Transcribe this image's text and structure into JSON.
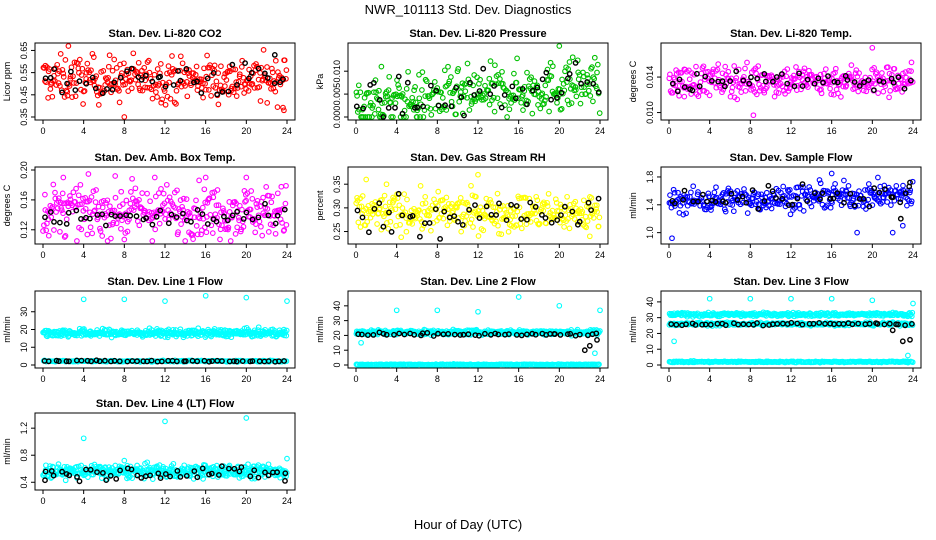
{
  "figure": {
    "title": "NWR_101113  Std. Dev. Diagnostics",
    "xlabel": "Hour of Day (UTC)"
  },
  "chart_data": [
    {
      "type": "scatter",
      "title": "Stan. Dev. Li-820 CO2",
      "ylabel": "Licor ppm",
      "xlim": [
        0,
        24
      ],
      "ylim": [
        0.35,
        0.67
      ],
      "xticks": [
        "0",
        "4",
        "8",
        "12",
        "16",
        "20",
        "24"
      ],
      "yticks": [
        "0.35",
        "0.45",
        "0.55",
        "0.65"
      ],
      "series": [
        {
          "name": "all",
          "color": "#ff0000",
          "n": 320,
          "center": 0.52,
          "spread": 0.05,
          "outliers": [
            [
              2.5,
              0.67
            ],
            [
              8,
              0.35
            ],
            [
              23.7,
              0.38
            ],
            [
              5,
              0.62
            ]
          ]
        },
        {
          "name": "hourly",
          "color": "#000000",
          "n": 48,
          "center": 0.52,
          "spread": 0.04,
          "outliers": [
            [
              22.8,
              0.63
            ]
          ]
        }
      ]
    },
    {
      "type": "scatter",
      "title": "Stan. Dev. Li-820 Pressure",
      "ylabel": "kPa",
      "xlim": [
        0,
        24
      ],
      "ylim": [
        0.0,
        0.0155
      ],
      "xticks": [
        "0",
        "4",
        "8",
        "12",
        "16",
        "20",
        "24"
      ],
      "yticks": [
        "0.000",
        "0.005",
        "0.010"
      ],
      "series": [
        {
          "name": "all",
          "color": "#00c000",
          "n": 320,
          "center": 0.005,
          "spread": 0.0028,
          "trend": 0.0002,
          "outliers": [
            [
              2.5,
              0.011
            ],
            [
              20,
              0.0155
            ],
            [
              21,
              0.012
            ],
            [
              6,
              0.0
            ]
          ]
        },
        {
          "name": "hourly",
          "color": "#000000",
          "n": 48,
          "center": 0.005,
          "spread": 0.0022,
          "trend": 0.0002,
          "outliers": []
        }
      ]
    },
    {
      "type": "scatter",
      "title": "Stan. Dev. Li-820 Temp.",
      "ylabel": "degrees C",
      "xlim": [
        0,
        24
      ],
      "ylim": [
        0.0095,
        0.0175
      ],
      "xticks": [
        "0",
        "4",
        "8",
        "12",
        "16",
        "20",
        "24"
      ],
      "yticks": [
        "0.010",
        "0.014"
      ],
      "series": [
        {
          "name": "all",
          "color": "#ff00ff",
          "n": 320,
          "center": 0.0136,
          "spread": 0.0009,
          "outliers": [
            [
              8.3,
              0.0097
            ],
            [
              20,
              0.0173
            ],
            [
              1.5,
              0.0118
            ]
          ]
        },
        {
          "name": "hourly",
          "color": "#000000",
          "n": 48,
          "center": 0.0136,
          "spread": 0.0006,
          "outliers": [
            [
              2.3,
              0.0125
            ]
          ]
        }
      ]
    },
    {
      "type": "scatter",
      "title": "Stan. Dev. Amb. Box Temp.",
      "ylabel": "degrees C",
      "xlim": [
        0,
        24
      ],
      "ylim": [
        0.105,
        0.2
      ],
      "xticks": [
        "0",
        "4",
        "8",
        "12",
        "16",
        "20",
        "24"
      ],
      "yticks": [
        "0.12",
        "0.16",
        "0.20"
      ],
      "series": [
        {
          "name": "all",
          "color": "#ff00ff",
          "n": 340,
          "center": 0.145,
          "spread": 0.017,
          "outliers": [
            [
              2,
              0.19
            ],
            [
              11,
              0.19
            ],
            [
              16,
              0.19
            ],
            [
              20,
              0.19
            ],
            [
              8,
              0.107
            ]
          ]
        },
        {
          "name": "hourly",
          "color": "#000000",
          "n": 48,
          "center": 0.135,
          "spread": 0.008,
          "outliers": []
        }
      ]
    },
    {
      "type": "scatter",
      "title": "Stan. Dev. Gas Stream RH",
      "ylabel": "percent",
      "xlim": [
        0,
        24
      ],
      "ylim": [
        0.23,
        0.38
      ],
      "xticks": [
        "0",
        "4",
        "8",
        "12",
        "16",
        "20",
        "24"
      ],
      "yticks": [
        "0.25",
        "0.30",
        "0.35"
      ],
      "series": [
        {
          "name": "all",
          "color": "#ffff00",
          "n": 330,
          "center": 0.29,
          "spread": 0.02,
          "outliers": [
            [
              1,
              0.36
            ],
            [
              12,
              0.37
            ],
            [
              3,
              0.35
            ],
            [
              23,
              0.24
            ]
          ]
        },
        {
          "name": "hourly",
          "color": "#000000",
          "n": 48,
          "center": 0.285,
          "spread": 0.02,
          "outliers": []
        }
      ]
    },
    {
      "type": "scatter",
      "title": "Stan. Dev. Sample Flow",
      "ylabel": "ml/min",
      "xlim": [
        0,
        24
      ],
      "ylim": [
        0.88,
        1.9
      ],
      "xticks": [
        "0",
        "4",
        "8",
        "12",
        "16",
        "20",
        "24"
      ],
      "yticks": [
        "1.0",
        "1.4",
        "1.8"
      ],
      "series": [
        {
          "name": "all",
          "color": "#0000ff",
          "n": 330,
          "center": 1.5,
          "spread": 0.09,
          "trend": 0.004,
          "outliers": [
            [
              0.3,
              0.92
            ],
            [
              18.5,
              1.0
            ],
            [
              16,
              1.85
            ],
            [
              23,
              1.1
            ],
            [
              22,
              1.0
            ]
          ]
        },
        {
          "name": "hourly",
          "color": "#000000",
          "n": 48,
          "center": 1.52,
          "spread": 0.08,
          "trend": 0.004,
          "outliers": [
            [
              23.7,
              1.72
            ],
            [
              22.8,
              1.2
            ]
          ]
        }
      ]
    },
    {
      "type": "scatter",
      "title": "Stan. Dev. Line 1 Flow",
      "ylabel": "ml/min",
      "xlim": [
        0,
        24
      ],
      "ylim": [
        0,
        40
      ],
      "xticks": [
        "0",
        "4",
        "8",
        "12",
        "16",
        "20",
        "24"
      ],
      "yticks": [
        "0",
        "10",
        "20",
        "30"
      ],
      "series": [
        {
          "name": "all",
          "color": "#00ffff",
          "n": 420,
          "center": 18,
          "spread": 1.1,
          "outliers": [
            [
              4,
              37
            ],
            [
              8,
              37
            ],
            [
              12,
              36
            ],
            [
              16,
              39
            ],
            [
              20,
              38
            ],
            [
              24,
              36
            ]
          ]
        },
        {
          "name": "baseline",
          "color": "#00ffff",
          "n": 200,
          "center": 2.2,
          "spread": 0.2,
          "outliers": []
        },
        {
          "name": "hourly",
          "color": "#000000",
          "n": 48,
          "center": 2.2,
          "spread": 0.2,
          "outliers": []
        }
      ]
    },
    {
      "type": "scatter",
      "title": "Stan. Dev. Line 2 Flow",
      "ylabel": "ml/min",
      "xlim": [
        0,
        24
      ],
      "ylim": [
        0,
        48
      ],
      "xticks": [
        "0",
        "4",
        "8",
        "12",
        "16",
        "20",
        "24"
      ],
      "yticks": [
        "0",
        "10",
        "20",
        "30",
        "40"
      ],
      "series": [
        {
          "name": "all",
          "color": "#00ffff",
          "n": 420,
          "center": 22,
          "spread": 0.8,
          "outliers": [
            [
              4,
              37
            ],
            [
              8,
              37
            ],
            [
              12,
              36
            ],
            [
              16,
              46
            ],
            [
              20,
              40
            ],
            [
              24,
              37
            ],
            [
              0.5,
              15
            ],
            [
              23.5,
              8
            ]
          ]
        },
        {
          "name": "baseline",
          "color": "#00ffff",
          "n": 240,
          "center": 0.3,
          "spread": 0.15,
          "outliers": []
        },
        {
          "name": "hourly",
          "color": "#000000",
          "n": 48,
          "center": 20.5,
          "spread": 0.5,
          "outliers": [
            [
              22.5,
              10
            ],
            [
              23,
              13
            ],
            [
              23.7,
              17
            ],
            [
              19.5,
              21
            ]
          ]
        }
      ]
    },
    {
      "type": "scatter",
      "title": "Stan. Dev. Line 3 Flow",
      "ylabel": "ml/min",
      "xlim": [
        0,
        24
      ],
      "ylim": [
        0,
        45
      ],
      "xticks": [
        "0",
        "4",
        "8",
        "12",
        "16",
        "20",
        "24"
      ],
      "yticks": [
        "0",
        "10",
        "20",
        "30",
        "40"
      ],
      "series": [
        {
          "name": "all",
          "color": "#00ffff",
          "n": 300,
          "center": 32,
          "spread": 0.6,
          "outliers": [
            [
              4,
              42
            ],
            [
              8,
              42
            ],
            [
              12,
              42
            ],
            [
              16,
              42
            ],
            [
              20,
              41
            ],
            [
              24,
              39
            ],
            [
              0.5,
              15
            ],
            [
              23.5,
              6
            ]
          ]
        },
        {
          "name": "mid",
          "color": "#00ffff",
          "n": 300,
          "center": 26,
          "spread": 0.5,
          "outliers": []
        },
        {
          "name": "baseline",
          "color": "#00ffff",
          "n": 240,
          "center": 2,
          "spread": 0.2,
          "outliers": []
        },
        {
          "name": "hourly",
          "color": "#000000",
          "n": 48,
          "center": 26,
          "spread": 0.5,
          "outliers": [
            [
              23,
              15
            ],
            [
              23.7,
              16
            ],
            [
              22,
              22
            ]
          ]
        }
      ]
    },
    {
      "type": "scatter",
      "title": "Stan. Dev. Line 4 (LT) Flow",
      "ylabel": "ml/min",
      "xlim": [
        0,
        24
      ],
      "ylim": [
        0.33,
        1.38
      ],
      "xticks": [
        "0",
        "4",
        "8",
        "12",
        "16",
        "20",
        "24"
      ],
      "yticks": [
        "0.4",
        "0.8",
        "1.2"
      ],
      "series": [
        {
          "name": "all",
          "color": "#00ffff",
          "n": 420,
          "center": 0.56,
          "spread": 0.05,
          "outliers": [
            [
              4,
              1.05
            ],
            [
              12,
              1.3
            ],
            [
              20,
              1.35
            ],
            [
              24,
              0.75
            ],
            [
              8,
              0.72
            ]
          ]
        },
        {
          "name": "hourly",
          "color": "#000000",
          "n": 48,
          "center": 0.54,
          "spread": 0.05,
          "outliers": [
            [
              23.8,
              0.42
            ],
            [
              0.2,
              0.43
            ]
          ]
        }
      ]
    }
  ]
}
